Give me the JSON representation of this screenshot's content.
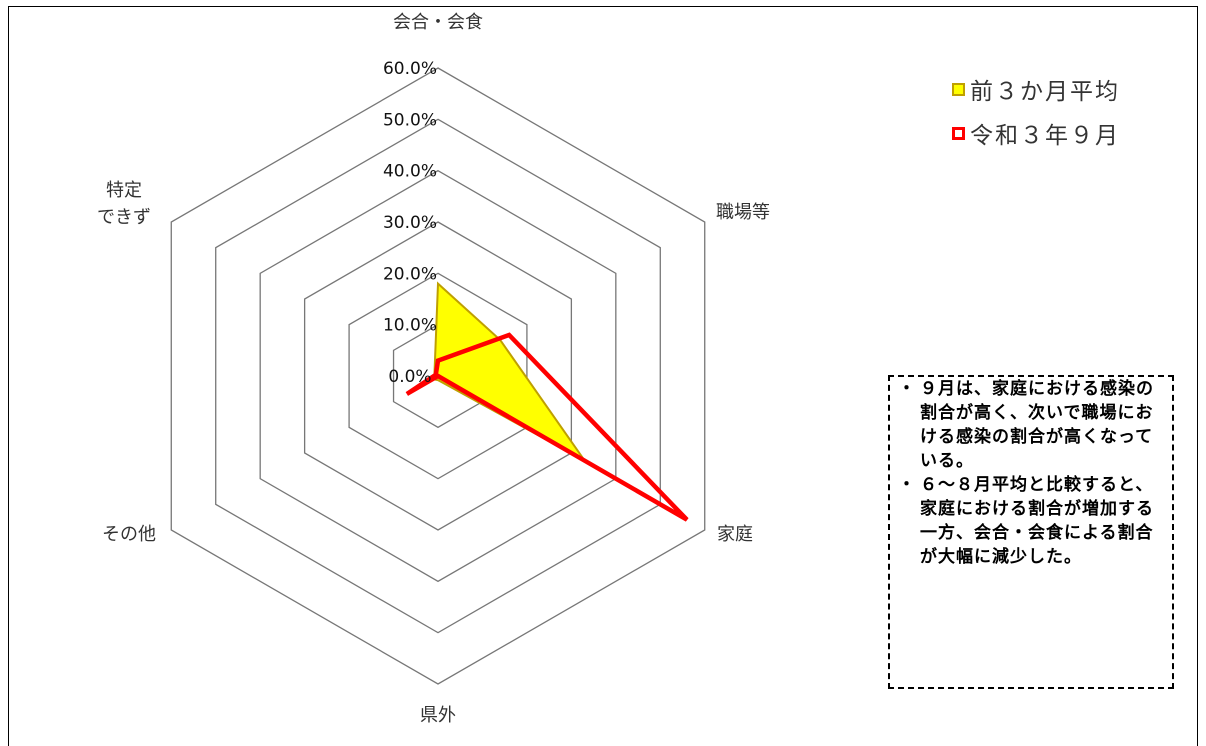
{
  "chart_data": {
    "type": "radar",
    "categories": [
      "会合・会食",
      "職場等",
      "家庭",
      "県外",
      "その他",
      "特定\nできず"
    ],
    "series": [
      {
        "name": "前３か月平均",
        "values": [
          18.0,
          14.0,
          33.0,
          0.8,
          1.2,
          0.8
        ]
      },
      {
        "name": "令和３年９月",
        "values": [
          3.0,
          16.0,
          56.0,
          0.0,
          7.0,
          0.5
        ]
      }
    ],
    "rlim": [
      0,
      60
    ],
    "ticks": [
      "0.0%",
      "10.0%",
      "20.0%",
      "30.0%",
      "40.0%",
      "50.0%",
      "60.0%"
    ],
    "grid": true,
    "legend_position": "top-right"
  },
  "colors": {
    "series_fill": "#ffff00",
    "series_stroke": "#bfa000",
    "series2_stroke": "#ff0000",
    "grid": "#777777"
  },
  "legend": [
    {
      "label": "前３か月平均",
      "fill": "#ffff00",
      "border": "#bfa000"
    },
    {
      "label": "令和３年９月",
      "fill": "#ffffff",
      "border": "#ff0000"
    }
  ],
  "note": {
    "items": [
      {
        "bullet": "・",
        "text": "９月は、家庭における感染の割合が高く、次いで職場における感染の割合が高くなっている。"
      },
      {
        "bullet": "・",
        "text": "６～８月平均と比較すると、家庭における割合が増加する一方、会合・会食による割合が大幅に減少した。"
      }
    ]
  }
}
